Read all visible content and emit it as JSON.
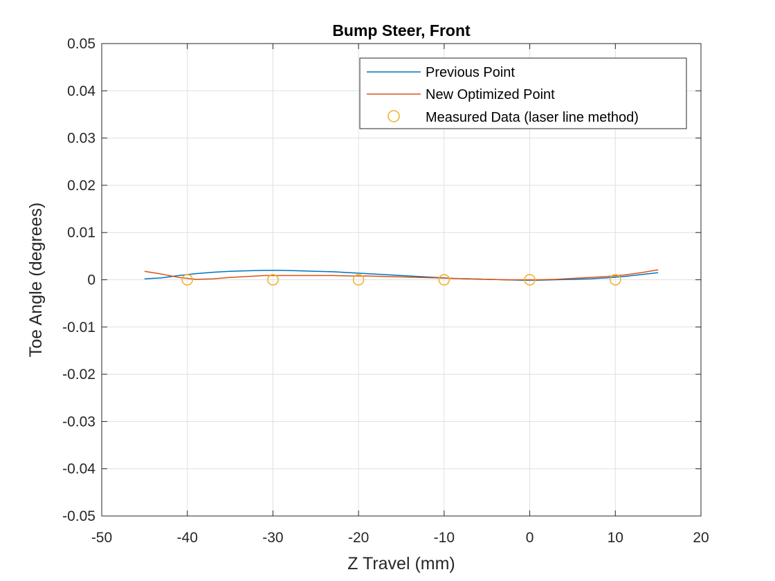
{
  "chart_data": {
    "type": "line",
    "title": "Bump Steer, Front",
    "xlabel": "Z Travel (mm)",
    "ylabel": "Toe Angle (degrees)",
    "xlim": [
      -50,
      20
    ],
    "ylim": [
      -0.05,
      0.05
    ],
    "xticks": [
      -50,
      -40,
      -30,
      -20,
      -10,
      0,
      10,
      20
    ],
    "xtick_labels": [
      "-50",
      "-40",
      "-30",
      "-20",
      "-10",
      "0",
      "10",
      "20"
    ],
    "yticks": [
      -0.05,
      -0.04,
      -0.03,
      -0.02,
      -0.01,
      0,
      0.01,
      0.02,
      0.03,
      0.04,
      0.05
    ],
    "ytick_labels": [
      "-0.05",
      "-0.04",
      "-0.03",
      "-0.02",
      "-0.01",
      "0",
      "0.01",
      "0.02",
      "0.03",
      "0.04",
      "0.05"
    ],
    "grid": true,
    "legend_position": "top-right",
    "series": [
      {
        "name": "Previous Point",
        "style": "line",
        "color": "#0072BD",
        "x": [
          -45,
          -43,
          -41,
          -39,
          -37,
          -35,
          -33,
          -31,
          -29,
          -27,
          -25,
          -23,
          -21,
          -19,
          -17,
          -15,
          -13,
          -11,
          -9,
          -7,
          -5,
          -3,
          -1,
          1,
          3,
          5,
          7,
          9,
          11,
          13,
          15
        ],
        "y": [
          0.0002,
          0.0004,
          0.0009,
          0.0013,
          0.0016,
          0.0018,
          0.0019,
          0.002,
          0.002,
          0.0019,
          0.0018,
          0.0017,
          0.0015,
          0.0013,
          0.0011,
          0.0009,
          0.0007,
          0.0005,
          0.0003,
          0.0002,
          0.0001,
          0.0,
          -0.0001,
          -0.0001,
          0.0,
          0.0001,
          0.0002,
          0.0004,
          0.0007,
          0.0011,
          0.0015
        ]
      },
      {
        "name": "New Optimized Point",
        "style": "line",
        "color": "#D95319",
        "x": [
          -45,
          -43,
          -41,
          -39,
          -37,
          -35,
          -33,
          -31,
          -29,
          -27,
          -25,
          -23,
          -21,
          -19,
          -17,
          -15,
          -13,
          -11,
          -9,
          -7,
          -5,
          -3,
          -1,
          1,
          3,
          5,
          7,
          9,
          11,
          13,
          15
        ],
        "y": [
          0.0018,
          0.0012,
          0.0005,
          0.0001,
          0.0002,
          0.0005,
          0.0007,
          0.0009,
          0.0009,
          0.0009,
          0.0009,
          0.0009,
          0.0008,
          0.0008,
          0.0007,
          0.0006,
          0.0005,
          0.0004,
          0.0003,
          0.0002,
          0.0001,
          0.0,
          0.0,
          0.0,
          0.0001,
          0.0003,
          0.0005,
          0.0007,
          0.001,
          0.0015,
          0.0021
        ]
      },
      {
        "name": "Measured Data (laser line method)",
        "style": "markers",
        "marker": "circle",
        "color": "#EDB120",
        "x": [
          -40,
          -30,
          -20,
          -10,
          0,
          10
        ],
        "y": [
          0,
          0,
          0,
          0,
          0,
          0
        ]
      }
    ]
  }
}
